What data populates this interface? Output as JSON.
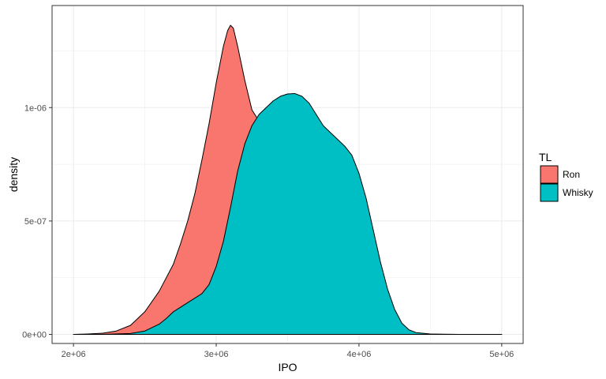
{
  "chart_data": {
    "type": "area",
    "xlabel": "IPO",
    "ylabel": "density",
    "xlim": [
      1850000,
      5150000
    ],
    "ylim": [
      -4e-08,
      1.45e-06
    ],
    "x_ticks": [
      2000000,
      3000000,
      4000000,
      5000000
    ],
    "x_tick_labels": [
      "2e+06",
      "3e+06",
      "4e+06",
      "5e+06"
    ],
    "y_ticks": [
      0,
      5e-07,
      1e-06
    ],
    "y_tick_labels": [
      "0e+00",
      "5e-07",
      "1e-06"
    ],
    "grid": true,
    "legend": {
      "title": "TL",
      "position": "right"
    },
    "series": [
      {
        "name": "Ron",
        "color": "#F8766D",
        "x": [
          2000000,
          2100000,
          2200000,
          2300000,
          2400000,
          2500000,
          2600000,
          2700000,
          2750000,
          2800000,
          2850000,
          2900000,
          2950000,
          3000000,
          3050000,
          3080000,
          3100000,
          3120000,
          3150000,
          3200000,
          3250000,
          3300000,
          3350000,
          3400000,
          3500000,
          3600000,
          3700000,
          3800000,
          3900000,
          4000000,
          4100000,
          4200000,
          4300000,
          4400000,
          4500000,
          4600000,
          4700000,
          4800000,
          4900000,
          5000000
        ],
        "y": [
          0,
          2e-09,
          5e-09,
          1.5e-08,
          4e-08,
          1e-07,
          1.9e-07,
          3.1e-07,
          4e-07,
          5e-07,
          6.2e-07,
          7.7e-07,
          9.3e-07,
          1.11e-06,
          1.27e-06,
          1.34e-06,
          1.363e-06,
          1.35e-06,
          1.27e-06,
          1.12e-06,
          9.9e-07,
          9.4e-07,
          9.2e-07,
          9e-07,
          8.2e-07,
          7e-07,
          5.5e-07,
          3.9e-07,
          2.4e-07,
          1.2e-07,
          5e-08,
          2e-08,
          8e-09,
          3e-09,
          1e-09,
          5e-10,
          0,
          0,
          0,
          0
        ]
      },
      {
        "name": "Whisky",
        "color": "#00BFC4",
        "x": [
          2000000,
          2200000,
          2400000,
          2500000,
          2600000,
          2650000,
          2700000,
          2750000,
          2800000,
          2850000,
          2900000,
          2950000,
          3000000,
          3050000,
          3100000,
          3150000,
          3200000,
          3250000,
          3300000,
          3350000,
          3400000,
          3450000,
          3500000,
          3550000,
          3600000,
          3650000,
          3700000,
          3750000,
          3800000,
          3850000,
          3900000,
          3950000,
          4000000,
          4050000,
          4100000,
          4150000,
          4200000,
          4250000,
          4300000,
          4350000,
          4400000,
          4500000,
          4600000,
          4700000,
          5000000
        ],
        "y": [
          0,
          0,
          4e-09,
          1.5e-08,
          4.5e-08,
          7e-08,
          1e-07,
          1.2e-07,
          1.4e-07,
          1.6e-07,
          1.8e-07,
          2.2e-07,
          3e-07,
          4.1e-07,
          5.6e-07,
          7.2e-07,
          8.4e-07,
          9.2e-07,
          9.7e-07,
          1e-06,
          1.03e-06,
          1.05e-06,
          1.06e-06,
          1.062e-06,
          1.05e-06,
          1.02e-06,
          9.7e-07,
          9.2e-07,
          8.9e-07,
          8.6e-07,
          8.3e-07,
          7.9e-07,
          7.1e-07,
          6e-07,
          4.6e-07,
          3.2e-07,
          2e-07,
          1.1e-07,
          5e-08,
          2e-08,
          8e-09,
          2e-09,
          5e-10,
          0,
          0
        ]
      }
    ]
  }
}
